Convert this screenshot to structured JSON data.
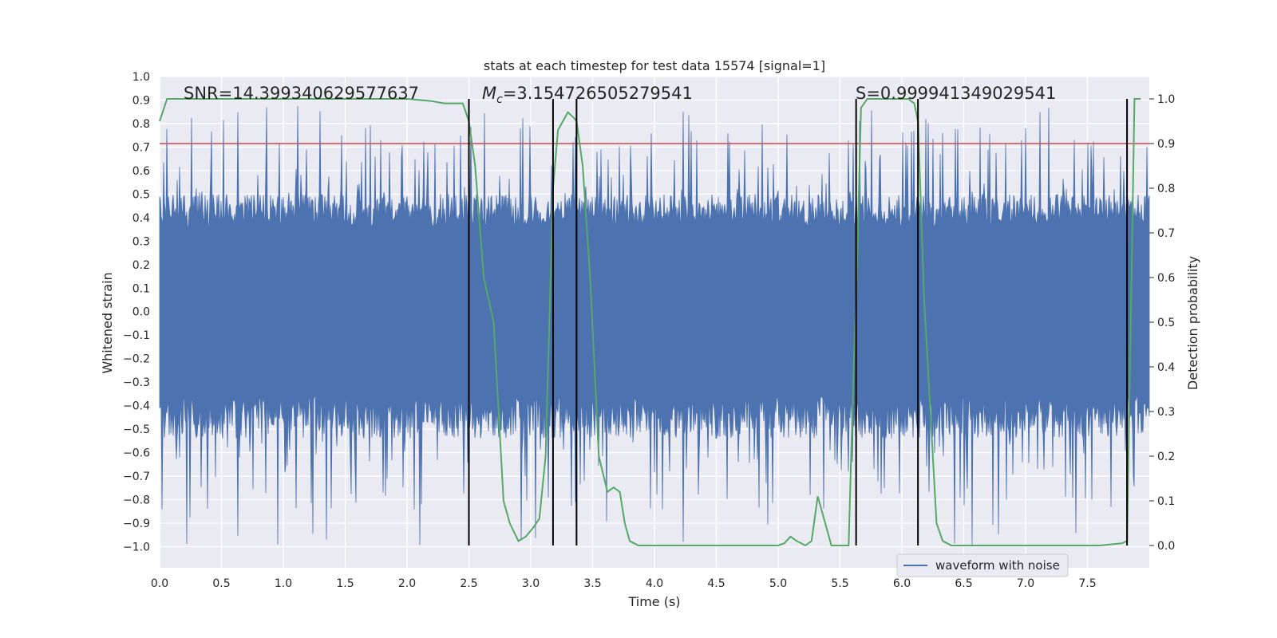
{
  "chart_data": {
    "type": "line",
    "title": "stats at each timestep for test data 15574 [signal=1]",
    "xlabel": "Time (s)",
    "ylabel": "Whitened strain",
    "y2label": "Detection probability",
    "xlim": [
      0.0,
      8.0
    ],
    "ylim": [
      -1.09,
      1.0
    ],
    "y2lim": [
      -0.05,
      1.05
    ],
    "xticks": [
      "0.0",
      "0.5",
      "1.0",
      "1.5",
      "2.0",
      "2.5",
      "3.0",
      "3.5",
      "4.0",
      "4.5",
      "5.0",
      "5.5",
      "6.0",
      "6.5",
      "7.0",
      "7.5"
    ],
    "xtick_values": [
      0.0,
      0.5,
      1.0,
      1.5,
      2.0,
      2.5,
      3.0,
      3.5,
      4.0,
      4.5,
      5.0,
      5.5,
      6.0,
      6.5,
      7.0,
      7.5
    ],
    "yticks": [
      "1.0",
      "0.9",
      "0.8",
      "0.7",
      "0.6",
      "0.5",
      "0.4",
      "0.3",
      "0.2",
      "0.1",
      "0.0",
      "−0.1",
      "−0.2",
      "−0.3",
      "−0.4",
      "−0.5",
      "−0.6",
      "−0.7",
      "−0.8",
      "−0.9",
      "−1.0"
    ],
    "ytick_values": [
      1.0,
      0.9,
      0.8,
      0.7,
      0.6,
      0.5,
      0.4,
      0.3,
      0.2,
      0.1,
      0.0,
      -0.1,
      -0.2,
      -0.3,
      -0.4,
      -0.5,
      -0.6,
      -0.7,
      -0.8,
      -0.9,
      -1.0
    ],
    "y2ticks": [
      "1.0",
      "0.9",
      "0.8",
      "0.7",
      "0.6",
      "0.5",
      "0.4",
      "0.3",
      "0.2",
      "0.1",
      "0.0"
    ],
    "y2tick_values": [
      1.0,
      0.9,
      0.8,
      0.7,
      0.6,
      0.5,
      0.4,
      0.3,
      0.2,
      0.1,
      0.0
    ],
    "grid": true,
    "background": "#eaeaf2",
    "annotations": {
      "snr": "SNR=14.399340629577637",
      "mc_prefix": "M",
      "mc_sub": "c",
      "mc_value": "=3.154726505279541",
      "s": "S=0.999941349029541"
    },
    "legend": {
      "label": "waveform with noise",
      "position": "lower-right"
    },
    "threshold": {
      "y2": 0.9,
      "color": "#c44e52"
    },
    "vlines_x": [
      2.5,
      3.18,
      3.37,
      5.63,
      6.13,
      7.82
    ],
    "waveform": {
      "name": "waveform with noise",
      "color": "#4c72b0",
      "envelope_min_y": -1.0,
      "envelope_max_y": 0.9
    },
    "series": [
      {
        "name": "Detection probability",
        "axis": "y2",
        "color": "#55a868",
        "x": [
          0.0,
          0.06,
          0.5,
          1.0,
          1.5,
          2.0,
          2.2,
          2.3,
          2.45,
          2.5,
          2.55,
          2.62,
          2.7,
          2.78,
          2.83,
          2.9,
          2.96,
          3.02,
          3.07,
          3.12,
          3.15,
          3.18,
          3.22,
          3.26,
          3.3,
          3.34,
          3.37,
          3.42,
          3.48,
          3.55,
          3.62,
          3.67,
          3.72,
          3.76,
          3.8,
          3.87,
          3.95,
          4.2,
          4.6,
          5.0,
          5.05,
          5.1,
          5.15,
          5.22,
          5.27,
          5.32,
          5.38,
          5.43,
          5.5,
          5.57,
          5.61,
          5.63,
          5.67,
          5.72,
          5.78,
          5.85,
          5.95,
          6.05,
          6.1,
          6.13,
          6.18,
          6.23,
          6.28,
          6.33,
          6.4,
          6.5,
          6.8,
          7.2,
          7.6,
          7.78,
          7.82,
          7.85,
          7.88,
          7.93
        ],
        "y": [
          0.95,
          1.0,
          1.0,
          1.0,
          1.0,
          1.0,
          0.995,
          0.99,
          0.99,
          0.95,
          0.85,
          0.6,
          0.5,
          0.1,
          0.05,
          0.01,
          0.02,
          0.04,
          0.06,
          0.2,
          0.5,
          0.8,
          0.93,
          0.95,
          0.97,
          0.96,
          0.95,
          0.85,
          0.6,
          0.2,
          0.12,
          0.13,
          0.12,
          0.05,
          0.01,
          0.0,
          0.0,
          0.0,
          0.0,
          0.0,
          0.005,
          0.02,
          0.01,
          0.0,
          0.01,
          0.11,
          0.05,
          0.0,
          0.0,
          0.0,
          0.4,
          0.55,
          0.98,
          1.0,
          1.0,
          1.0,
          1.0,
          1.0,
          0.99,
          0.95,
          0.55,
          0.3,
          0.05,
          0.01,
          0.0,
          0.0,
          0.0,
          0.0,
          0.0,
          0.005,
          0.01,
          0.5,
          1.0,
          1.0
        ]
      }
    ]
  }
}
